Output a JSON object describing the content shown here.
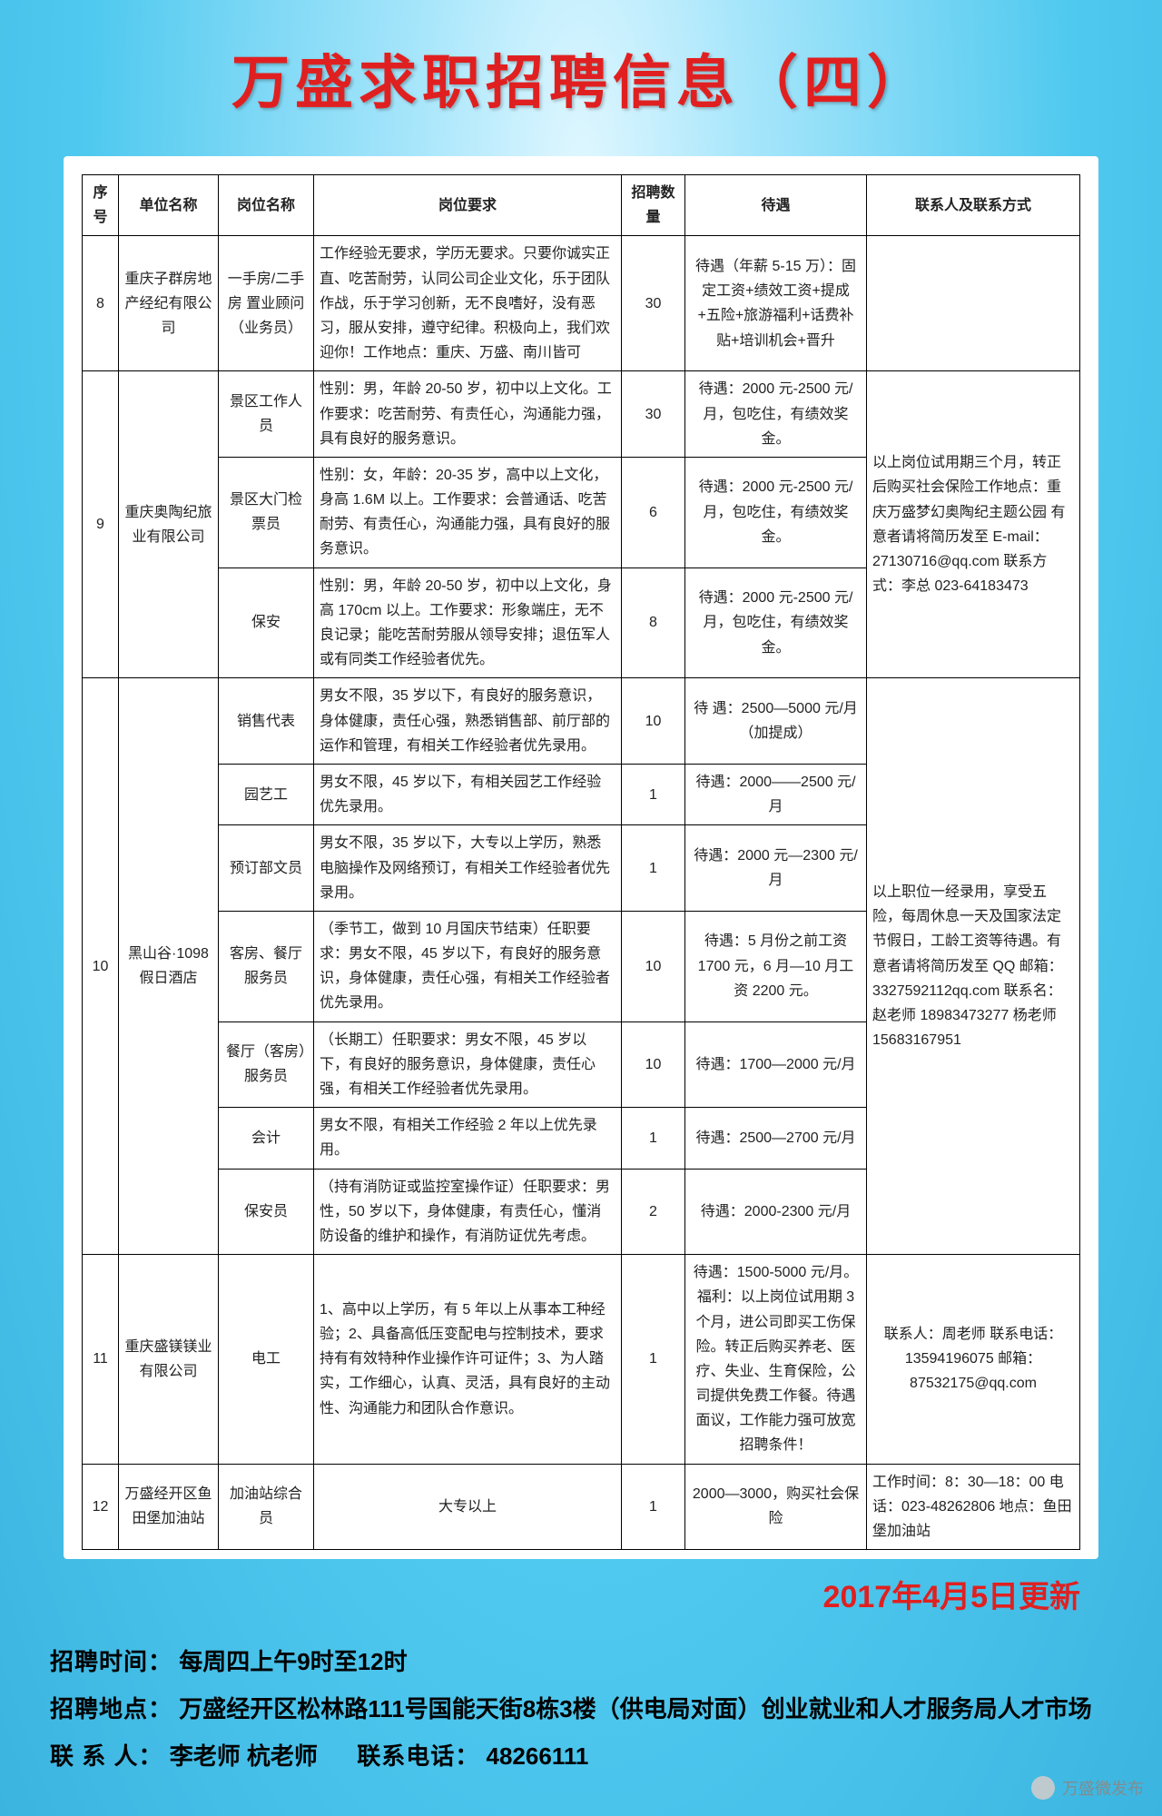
{
  "title": "万盛求职招聘信息（四）",
  "headers": [
    "序号",
    "单位名称",
    "岗位名称",
    "岗位要求",
    "招聘数量",
    "待遇",
    "联系人及联系方式"
  ],
  "update_line": "2017年4月5日更新",
  "rows": [
    {
      "seq": "8",
      "company": "重庆子群房地产经纪有限公司",
      "position": "一手房/二手房 置业顾问（业务员）",
      "req": "工作经验无要求，学历无要求。只要你诚实正直、吃苦耐劳，认同公司企业文化，乐于团队作战，乐于学习创新，无不良嗜好，没有恶习，服从安排，遵守纪律。积极向上，我们欢迎你！工作地点：重庆、万盛、南川皆可",
      "num": "30",
      "salary": "待遇（年薪 5-15 万）：固定工资+绩效工资+提成+五险+旅游福利+话费补贴+培训机会+晋升",
      "contact": ""
    },
    {
      "seq": "9",
      "company": "重庆奥陶纪旅业有限公司",
      "contact": "以上岗位试用期三个月，转正后购买社会保险工作地点：重庆万盛梦幻奥陶纪主题公园 有意者请将简历发至 E-mail：27130716@qq.com 联系方式：李总 023-64183473",
      "positions": [
        {
          "name": "景区工作人员",
          "req": "性别：男，年龄 20-50 岁，初中以上文化。工作要求：吃苦耐劳、有责任心，沟通能力强，具有良好的服务意识。",
          "num": "30",
          "salary": "待遇：2000 元-2500 元/月，包吃住，有绩效奖金。"
        },
        {
          "name": "景区大门检票员",
          "req": "性别：女，年龄：20-35 岁，高中以上文化，身高 1.6M 以上。工作要求：会普通话、吃苦耐劳、有责任心，沟通能力强，具有良好的服务意识。",
          "num": "6",
          "salary": "待遇：2000 元-2500 元/月，包吃住，有绩效奖金。"
        },
        {
          "name": "保安",
          "req": "性别：男，年龄 20-50 岁，初中以上文化，身高 170cm 以上。工作要求：形象端庄，无不良记录；能吃苦耐劳服从领导安排；退伍军人或有同类工作经验者优先。",
          "num": "8",
          "salary": "待遇：2000 元-2500 元/月，包吃住，有绩效奖金。"
        }
      ]
    },
    {
      "seq": "10",
      "company": "黑山谷·1098 假日酒店",
      "contact": "以上职位一经录用，享受五险，每周休息一天及国家法定节假日，工龄工资等待遇。有意者请将简历发至 QQ 邮箱：3327592112qq.com 联系名：赵老师 18983473277 杨老师 15683167951",
      "positions": [
        {
          "name": "销售代表",
          "req": "男女不限，35 岁以下，有良好的服务意识，身体健康，责任心强，熟悉销售部、前厅部的运作和管理，有相关工作经验者优先录用。",
          "num": "10",
          "salary": "待 遇：2500—5000 元/月（加提成）"
        },
        {
          "name": "园艺工",
          "req": "男女不限，45 岁以下，有相关园艺工作经验优先录用。",
          "num": "1",
          "salary": "待遇：2000——2500 元/月"
        },
        {
          "name": "预订部文员",
          "req": "男女不限，35 岁以下，大专以上学历，熟悉电脑操作及网络预订，有相关工作经验者优先录用。",
          "num": "1",
          "salary": "待遇：2000 元—2300 元/月"
        },
        {
          "name": "客房、餐厅服务员",
          "req": "（季节工，做到 10 月国庆节结束）任职要求：男女不限，45 岁以下，有良好的服务意识，身体健康，责任心强，有相关工作经验者优先录用。",
          "num": "10",
          "salary": "待遇：5 月份之前工资 1700 元，6 月—10 月工资 2200 元。"
        },
        {
          "name": "餐厅（客房）服务员",
          "req": "（长期工）任职要求：男女不限，45 岁以下，有良好的服务意识，身体健康，责任心强，有相关工作经验者优先录用。",
          "num": "10",
          "salary": "待遇：1700—2000 元/月"
        },
        {
          "name": "会计",
          "req": "男女不限，有相关工作经验 2 年以上优先录用。",
          "num": "1",
          "salary": "待遇：2500—2700 元/月"
        },
        {
          "name": "保安员",
          "req": "（持有消防证或监控室操作证）任职要求：男性，50 岁以下，身体健康，有责任心，懂消防设备的维护和操作，有消防证优先考虑。",
          "num": "2",
          "salary": "待遇：2000-2300 元/月"
        }
      ]
    },
    {
      "seq": "11",
      "company": "重庆盛镁镁业有限公司",
      "position": "电工",
      "req": "1、高中以上学历，有 5 年以上从事本工种经验；2、具备高低压变配电与控制技术，要求持有有效特种作业操作许可证件；3、为人踏实，工作细心，认真、灵活，具有良好的主动性、沟通能力和团队合作意识。",
      "num": "1",
      "salary": "待遇：1500-5000 元/月。福利：以上岗位试用期 3 个月，进公司即买工伤保险。转正后购买养老、医疗、失业、生育保险，公司提供免费工作餐。待遇面议，工作能力强可放宽招聘条件！",
      "contact": "联系人：周老师 联系电话：13594196075 邮箱：87532175@qq.com"
    },
    {
      "seq": "12",
      "company": "万盛经开区鱼田堡加油站",
      "position": "加油站综合员",
      "req": "大专以上",
      "num": "1",
      "salary": "2000—3000，购买社会保险",
      "contact": "工作时间：8：30—18：00 电话：023-48262806 地点：鱼田堡加油站"
    }
  ],
  "footer": {
    "l1_label": "招聘时间：",
    "l1_text": "每周四上午9时至12时",
    "l2_label": "招聘地点：",
    "l2_text": "万盛经开区松林路111号国能天街8栋3楼（供电局对面）创业就业和人才服务局人才市场",
    "l3_label_a": "联 系 人：",
    "l3_text_a": "李老师  杭老师",
    "l3_label_b": "联系电话：",
    "l3_text_b": "48266111"
  },
  "watermark": "万盛微发布"
}
